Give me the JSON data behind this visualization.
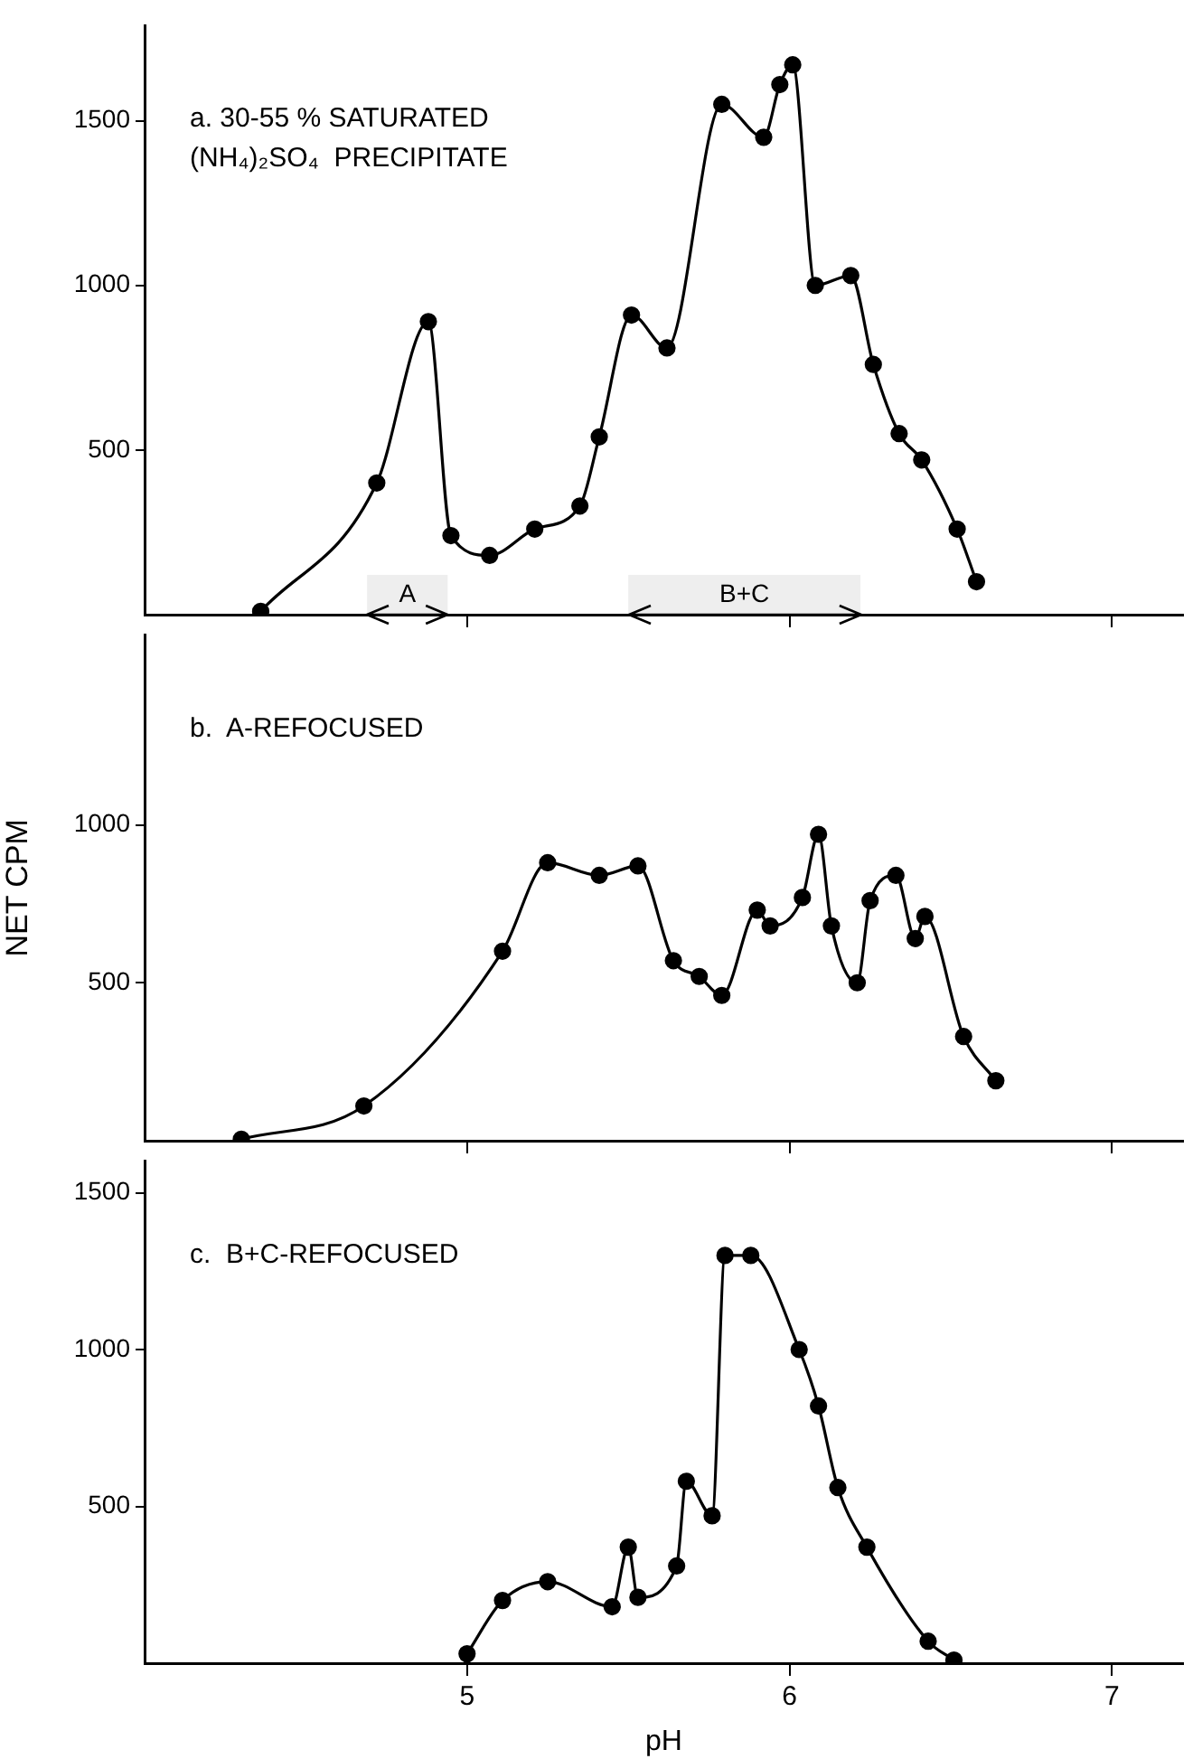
{
  "chart_data": [
    {
      "type": "line",
      "title": "a. 30-55 % SATURATED\n(NH₄)₂SO₄  PRECIPITATE",
      "marker": "circle",
      "grid": false,
      "legend": false,
      "tick_labels": "y",
      "xlim": [
        4,
        7.22
      ],
      "xticks": [
        5,
        6,
        7
      ],
      "ylim": [
        0,
        1790
      ],
      "yticks": [
        500,
        1000,
        1500
      ],
      "bands": [
        {
          "axis": "x",
          "from": 4.69,
          "to": 4.94,
          "label": "A",
          "color": "#eeeeee"
        },
        {
          "axis": "x",
          "from": 5.5,
          "to": 6.22,
          "label": "B+C",
          "color": "#eeeeee"
        }
      ],
      "series": [
        {
          "color": "#000000",
          "x": [
            4.36,
            4.72,
            4.88,
            4.95,
            5.07,
            5.21,
            5.35,
            5.41,
            5.51,
            5.62,
            5.79,
            5.92,
            5.97,
            6.01,
            6.08,
            6.19,
            6.26,
            6.34,
            6.41,
            6.52,
            6.58
          ],
          "values": [
            10,
            400,
            890,
            240,
            180,
            260,
            330,
            540,
            910,
            810,
            1550,
            1450,
            1610,
            1670,
            1000,
            1030,
            760,
            550,
            470,
            260,
            100
          ]
        }
      ]
    },
    {
      "type": "line",
      "title": "b.  A-REFOCUSED",
      "ylabel": "NET CPM",
      "marker": "circle",
      "grid": false,
      "legend": false,
      "tick_labels": "y",
      "xlim": [
        4,
        7.22
      ],
      "xticks": [
        5,
        6,
        7
      ],
      "ylim": [
        0,
        1600
      ],
      "yticks": [
        500,
        1000
      ],
      "series": [
        {
          "color": "#000000",
          "x": [
            4.3,
            4.68,
            5.11,
            5.25,
            5.41,
            5.53,
            5.64,
            5.72,
            5.79,
            5.9,
            5.94,
            6.04,
            6.09,
            6.13,
            6.21,
            6.25,
            6.33,
            6.39,
            6.42,
            6.54,
            6.64
          ],
          "values": [
            5,
            110,
            600,
            880,
            840,
            870,
            570,
            520,
            460,
            730,
            680,
            770,
            970,
            680,
            500,
            760,
            840,
            640,
            710,
            330,
            190
          ]
        }
      ]
    },
    {
      "type": "line",
      "title": "c.  B+C-REFOCUSED",
      "xlabel": "pH",
      "marker": "circle",
      "grid": false,
      "legend": false,
      "xlim": [
        4,
        7.22
      ],
      "xticks": [
        5,
        6,
        7
      ],
      "ylim": [
        0,
        1600
      ],
      "yticks": [
        500,
        1000,
        1500
      ],
      "series": [
        {
          "color": "#000000",
          "x": [
            5.0,
            5.11,
            5.25,
            5.45,
            5.5,
            5.53,
            5.65,
            5.68,
            5.76,
            5.8,
            5.88,
            6.03,
            6.09,
            6.15,
            6.24,
            6.43,
            6.51
          ],
          "values": [
            30,
            200,
            260,
            180,
            370,
            210,
            310,
            580,
            470,
            1300,
            1300,
            1000,
            820,
            560,
            370,
            70,
            10
          ]
        }
      ]
    }
  ]
}
